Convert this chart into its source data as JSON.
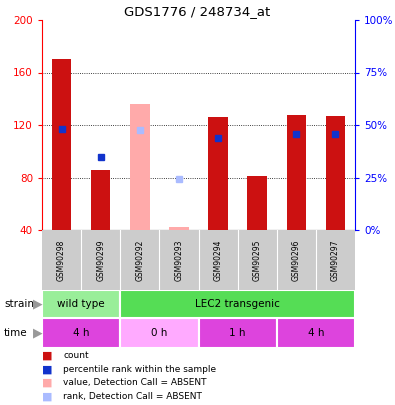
{
  "title": "GDS1776 / 248734_at",
  "samples": [
    "GSM90298",
    "GSM90299",
    "GSM90292",
    "GSM90293",
    "GSM90294",
    "GSM90295",
    "GSM90296",
    "GSM90297"
  ],
  "ylim_left": [
    40,
    200
  ],
  "ylim_right": [
    0,
    100
  ],
  "yticks_left": [
    40,
    80,
    120,
    160,
    200
  ],
  "yticks_right": [
    0,
    25,
    50,
    75,
    100
  ],
  "count_values": [
    170,
    86,
    null,
    null,
    126,
    81,
    128,
    127
  ],
  "count_color": "#cc1111",
  "absent_bar_values": [
    null,
    null,
    136,
    42,
    null,
    null,
    null,
    null
  ],
  "absent_bar_color": "#ffaaaa",
  "rank_values": [
    117,
    96,
    null,
    null,
    110,
    null,
    113,
    113
  ],
  "rank_color": "#1133cc",
  "absent_rank_values": [
    null,
    null,
    116,
    79,
    null,
    null,
    null,
    null
  ],
  "absent_rank_color": "#aabbff",
  "strain_labels": [
    {
      "label": "wild type",
      "start": 0,
      "end": 2,
      "color": "#99ee99"
    },
    {
      "label": "LEC2 transgenic",
      "start": 2,
      "end": 8,
      "color": "#55dd55"
    }
  ],
  "time_labels": [
    {
      "label": "4 h",
      "start": 0,
      "end": 2,
      "color": "#dd44dd"
    },
    {
      "label": "0 h",
      "start": 2,
      "end": 4,
      "color": "#ffaaff"
    },
    {
      "label": "1 h",
      "start": 4,
      "end": 6,
      "color": "#dd44dd"
    },
    {
      "label": "4 h",
      "start": 6,
      "end": 8,
      "color": "#dd44dd"
    }
  ],
  "plot_bg": "#ffffff",
  "label_row_color": "#cccccc",
  "grid_yticks": [
    80,
    120,
    160
  ],
  "legend_items": [
    {
      "color": "#cc1111",
      "label": "count"
    },
    {
      "color": "#1133cc",
      "label": "percentile rank within the sample"
    },
    {
      "color": "#ffaaaa",
      "label": "value, Detection Call = ABSENT"
    },
    {
      "color": "#aabbff",
      "label": "rank, Detection Call = ABSENT"
    }
  ]
}
